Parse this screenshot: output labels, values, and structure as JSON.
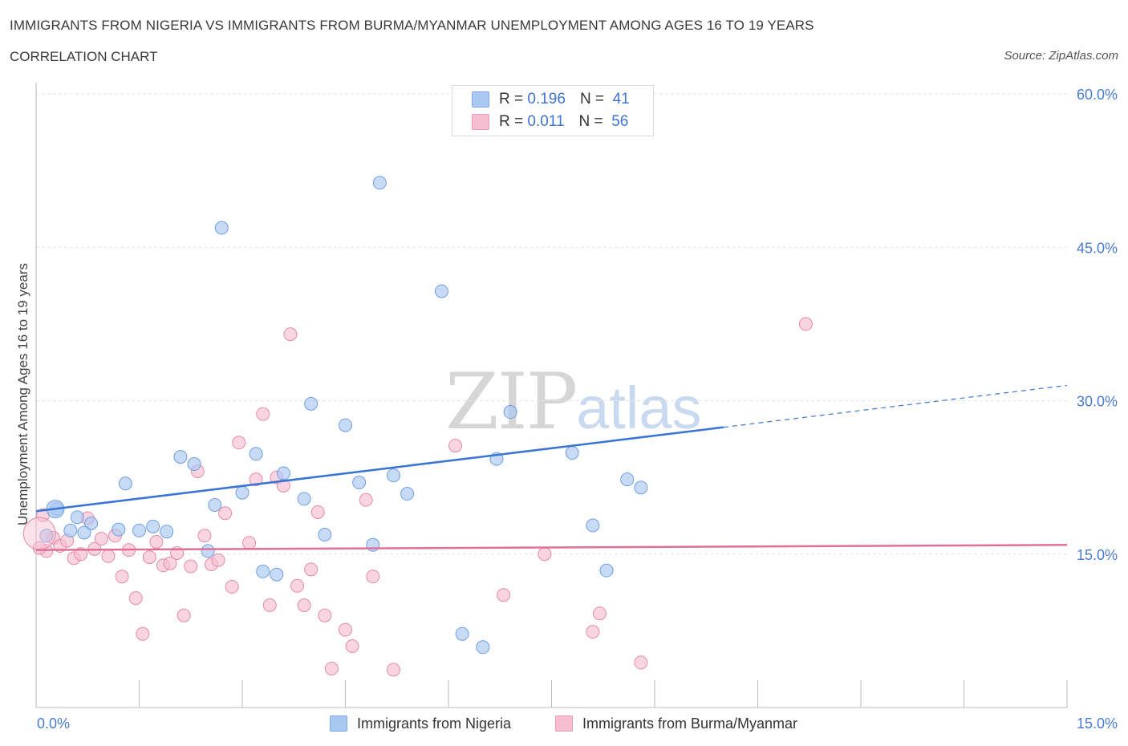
{
  "title": "IMMIGRANTS FROM NIGERIA VS IMMIGRANTS FROM BURMA/MYANMAR UNEMPLOYMENT AMONG AGES 16 TO 19 YEARS",
  "subtitle": "CORRELATION CHART",
  "source": "Source: ZipAtlas.com",
  "watermark": {
    "zip": "ZIP",
    "atlas": "atlas"
  },
  "legend": {
    "rows": [
      {
        "r_label": "R =",
        "r_value": "0.196",
        "n_label": "N =",
        "n_value": "41",
        "color": "#a9c8f2"
      },
      {
        "r_label": "R =",
        "r_value": "0.011",
        "n_label": "N =",
        "n_value": "56",
        "color": "#f6bfd1"
      }
    ]
  },
  "bottom_legend": [
    {
      "label": "Immigrants from Nigeria",
      "color": "#a9c8f2"
    },
    {
      "label": "Immigrants from Burma/Myanmar",
      "color": "#f6bfd1"
    }
  ],
  "chart_data": {
    "type": "scatter",
    "ylabel": "Unemployment Among Ages 16 to 19 years",
    "xlim": [
      0,
      15
    ],
    "ylim": [
      0,
      60
    ],
    "x_tick_labels": [
      "0.0%",
      "15.0%"
    ],
    "y_ticks": [
      15,
      30,
      45,
      60
    ],
    "y_tick_labels": [
      "15.0%",
      "30.0%",
      "45.0%",
      "60.0%"
    ],
    "grid": true,
    "series": [
      {
        "name": "Immigrants from Nigeria",
        "color": "#a9c8f2",
        "stroke": "#6f9fe0",
        "line_color": "#3a74d4",
        "trend": {
          "x0": 0,
          "y0": 19.2,
          "x1": 10.0,
          "y1": 27.4,
          "x_dash_end": 15.0,
          "y_dash_end": 31.5
        },
        "points": [
          [
            0.3,
            19.4
          ],
          [
            0.5,
            17.3
          ],
          [
            0.6,
            18.6
          ],
          [
            0.8,
            18.0
          ],
          [
            0.7,
            17.1
          ],
          [
            1.2,
            17.4
          ],
          [
            1.3,
            21.9
          ],
          [
            1.5,
            17.3
          ],
          [
            1.7,
            17.7
          ],
          [
            1.9,
            17.2
          ],
          [
            2.1,
            24.5
          ],
          [
            2.3,
            23.8
          ],
          [
            2.5,
            15.3
          ],
          [
            2.6,
            19.8
          ],
          [
            2.7,
            46.9
          ],
          [
            3.0,
            21.0
          ],
          [
            3.2,
            24.8
          ],
          [
            3.3,
            13.3
          ],
          [
            3.5,
            13.0
          ],
          [
            3.6,
            22.9
          ],
          [
            3.9,
            20.4
          ],
          [
            4.0,
            29.7
          ],
          [
            4.2,
            16.9
          ],
          [
            4.5,
            27.6
          ],
          [
            4.7,
            22.0
          ],
          [
            4.9,
            15.9
          ],
          [
            5.0,
            51.3
          ],
          [
            5.2,
            22.7
          ],
          [
            5.4,
            20.9
          ],
          [
            5.9,
            40.7
          ],
          [
            6.2,
            7.2
          ],
          [
            6.5,
            5.9
          ],
          [
            6.7,
            24.3
          ],
          [
            6.9,
            28.9
          ],
          [
            7.8,
            24.9
          ],
          [
            8.1,
            17.8
          ],
          [
            8.3,
            13.4
          ],
          [
            8.6,
            22.3
          ],
          [
            8.8,
            21.5
          ],
          [
            0.15,
            16.8
          ],
          [
            7.5,
            60.0
          ]
        ]
      },
      {
        "name": "Immigrants from Burma/Myanmar",
        "color": "#f6bfd1",
        "stroke": "#e68aa8",
        "line_color": "#e07097",
        "trend": {
          "x0": 0,
          "y0": 15.4,
          "x1": 15.0,
          "y1": 15.9
        },
        "points": [
          [
            0.1,
            18.8
          ],
          [
            0.15,
            15.3
          ],
          [
            0.25,
            16.6
          ],
          [
            0.35,
            15.8
          ],
          [
            0.45,
            16.3
          ],
          [
            0.55,
            14.6
          ],
          [
            0.65,
            15.0
          ],
          [
            0.75,
            18.5
          ],
          [
            0.85,
            15.5
          ],
          [
            0.95,
            16.5
          ],
          [
            1.05,
            14.8
          ],
          [
            1.15,
            16.8
          ],
          [
            1.25,
            12.8
          ],
          [
            1.35,
            15.4
          ],
          [
            1.45,
            10.7
          ],
          [
            1.55,
            7.2
          ],
          [
            1.65,
            14.7
          ],
          [
            1.75,
            16.2
          ],
          [
            1.85,
            13.9
          ],
          [
            1.95,
            14.1
          ],
          [
            2.05,
            15.1
          ],
          [
            2.15,
            9.0
          ],
          [
            2.25,
            13.8
          ],
          [
            2.35,
            23.1
          ],
          [
            2.45,
            16.8
          ],
          [
            2.55,
            14.0
          ],
          [
            2.65,
            14.4
          ],
          [
            2.75,
            19.0
          ],
          [
            2.85,
            11.8
          ],
          [
            2.95,
            25.9
          ],
          [
            3.1,
            16.1
          ],
          [
            3.2,
            22.3
          ],
          [
            3.3,
            28.7
          ],
          [
            3.4,
            10.0
          ],
          [
            3.5,
            22.5
          ],
          [
            3.6,
            21.7
          ],
          [
            3.7,
            36.5
          ],
          [
            3.8,
            11.9
          ],
          [
            3.9,
            10.0
          ],
          [
            4.0,
            13.5
          ],
          [
            4.1,
            19.1
          ],
          [
            4.2,
            9.0
          ],
          [
            4.3,
            3.8
          ],
          [
            4.5,
            7.6
          ],
          [
            4.6,
            6.0
          ],
          [
            4.8,
            20.3
          ],
          [
            4.9,
            12.8
          ],
          [
            5.2,
            3.7
          ],
          [
            6.1,
            25.6
          ],
          [
            6.8,
            11.0
          ],
          [
            7.4,
            15.0
          ],
          [
            8.1,
            7.4
          ],
          [
            8.2,
            9.2
          ],
          [
            8.8,
            4.4
          ],
          [
            11.2,
            37.5
          ],
          [
            0.05,
            15.6
          ]
        ]
      }
    ]
  }
}
